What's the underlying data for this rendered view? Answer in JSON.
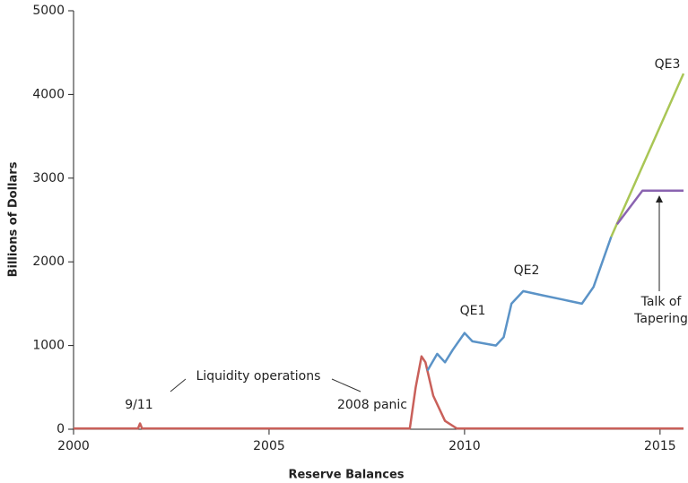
{
  "chart_data": {
    "type": "line",
    "xlabel": "Reserve Balances",
    "ylabel": "Billions of Dollars",
    "xlim": [
      2000,
      2015.6
    ],
    "xticks": [
      2000,
      2005,
      2010,
      2015
    ],
    "ylim": [
      0,
      5000
    ],
    "yticks": [
      0,
      1000,
      2000,
      3000,
      4000,
      5000
    ],
    "series": [
      {
        "color": "#c9605a",
        "x": [
          2000,
          2001.65,
          2001.7,
          2001.75,
          2008.6,
          2008.75,
          2008.9,
          2009.0,
          2009.2,
          2009.5,
          2009.8,
          2015.6
        ],
        "values": [
          10,
          10,
          70,
          10,
          10,
          500,
          870,
          800,
          400,
          100,
          10,
          10
        ]
      },
      {
        "color": "#5b93c7",
        "x": [
          2009.05,
          2009.3,
          2009.5,
          2009.7,
          2010.0,
          2010.2,
          2010.8,
          2011.0,
          2011.2,
          2011.5,
          2012.0,
          2012.5,
          2013.0,
          2013.3,
          2013.6,
          2013.75
        ],
        "values": [
          700,
          900,
          800,
          950,
          1150,
          1050,
          1000,
          1100,
          1500,
          1650,
          1600,
          1550,
          1500,
          1700,
          2100,
          2300
        ]
      },
      {
        "color": "#a9c655",
        "x": [
          2013.75,
          2015.6
        ],
        "values": [
          2300,
          4250
        ]
      },
      {
        "color": "#8a63b0",
        "x": [
          2013.9,
          2014.55,
          2015.6
        ],
        "values": [
          2450,
          2850,
          2850
        ]
      }
    ],
    "annotations": [
      "9/11",
      "Liquidity operations",
      "2008 panic",
      "QE1",
      "QE2",
      "QE3",
      "Talk of",
      "Tapering"
    ]
  }
}
